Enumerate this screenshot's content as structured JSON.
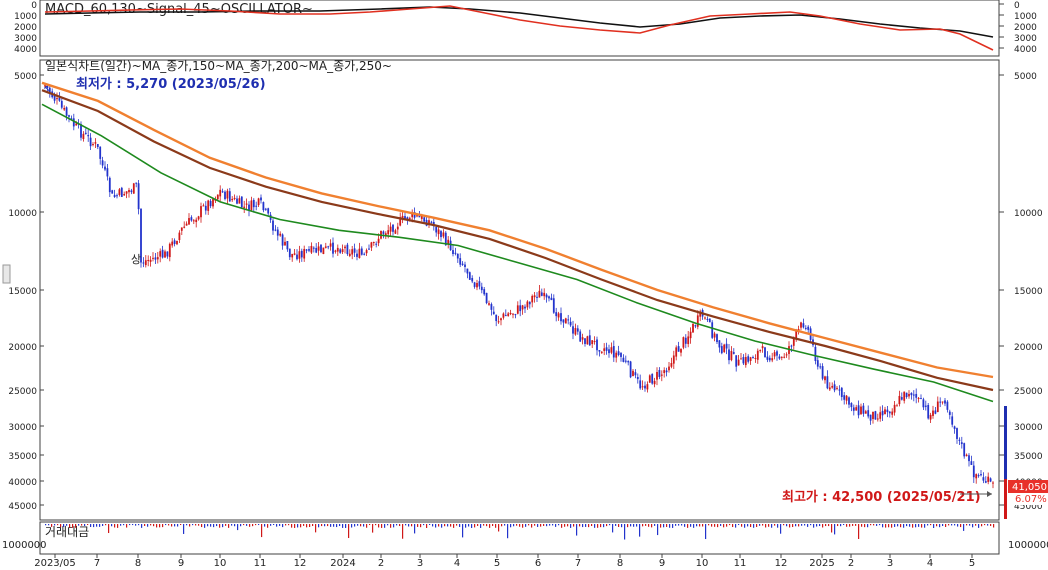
{
  "colors": {
    "up": "#d01818",
    "down": "#2233cc",
    "ma150": "#1e8a1e",
    "ma200": "#8b3a1a",
    "ma250": "#f08030",
    "macd": "#111111",
    "signal": "#e03020",
    "low_text": "#1f2fb0",
    "high_text": "#d01818",
    "price_badge": "#e8302a"
  },
  "macd_panel": {
    "title": "MACD_60,130~Signal_45~OSCILLATOR~",
    "y_ticks": [
      "0",
      "1000",
      "2000",
      "3000",
      "4000"
    ]
  },
  "price_panel": {
    "title": "일본식차트(일간)~MA_종가,150~MA_종가,200~MA_종가,250~",
    "y_ticks_left": [
      "5000",
      "10000",
      "15000",
      "20000",
      "25000",
      "30000",
      "35000",
      "40000",
      "45000"
    ],
    "y_ticks_right": [
      "5000",
      "10000",
      "15000",
      "20000",
      "25000",
      "30000",
      "35000",
      "40000",
      "45000"
    ],
    "low_annotation": "최저가 : 5,270 (2023/05/26)",
    "high_annotation": "최고가 : 42,500 (2025/05/21)",
    "last_price_badge": "41,050",
    "change_badge": "6.07%",
    "split_marker": "상"
  },
  "volume_panel": {
    "title": "거래대금",
    "left_tick": "1000000",
    "right_tick": "1000000"
  },
  "x_axis": {
    "labels": [
      "2023/05",
      "7",
      "8",
      "9",
      "10",
      "11",
      "12",
      "2024",
      "2",
      "3",
      "4",
      "5",
      "6",
      "7",
      "8",
      "9",
      "10",
      "11",
      "12",
      "2025",
      "2",
      "3",
      "4",
      "5"
    ]
  },
  "chart_data": {
    "type": "candlestick",
    "title": "일본식차트(일간)",
    "y_axis": {
      "inverted": true,
      "ticks": [
        5000,
        10000,
        15000,
        20000,
        25000,
        30000,
        35000,
        40000,
        45000
      ],
      "range": [
        5000,
        47000
      ]
    },
    "x_months": [
      "2023/05",
      "7",
      "8",
      "9",
      "10",
      "11",
      "12",
      "2024",
      "2",
      "3",
      "4",
      "5",
      "6",
      "7",
      "8",
      "9",
      "10",
      "11",
      "12",
      "2025",
      "2",
      "3",
      "4",
      "5"
    ],
    "price_path": [
      {
        "x": "2023/05",
        "y": 5270
      },
      {
        "x": "6",
        "y": 6500
      },
      {
        "x": "7",
        "y": 7200
      },
      {
        "x": "7 late",
        "y": 9300
      },
      {
        "x": "8",
        "y": 8800
      },
      {
        "x": "8 split",
        "y": 13000
      },
      {
        "x": "9",
        "y": 12500
      },
      {
        "x": "9 late",
        "y": 11000
      },
      {
        "x": "10",
        "y": 9000
      },
      {
        "x": "11",
        "y": 9800
      },
      {
        "x": "12",
        "y": 9600
      },
      {
        "x": "12 late",
        "y": 12500
      },
      {
        "x": "2024",
        "y": 12000
      },
      {
        "x": "2",
        "y": 12600
      },
      {
        "x": "2 late",
        "y": 11200
      },
      {
        "x": "3",
        "y": 10200
      },
      {
        "x": "3 late",
        "y": 10500
      },
      {
        "x": "4",
        "y": 12500
      },
      {
        "x": "4 late",
        "y": 15000
      },
      {
        "x": "5",
        "y": 17500
      },
      {
        "x": "5 late",
        "y": 16500
      },
      {
        "x": "6",
        "y": 15200
      },
      {
        "x": "6 late",
        "y": 17000
      },
      {
        "x": "7",
        "y": 19000
      },
      {
        "x": "7 late",
        "y": 21000
      },
      {
        "x": "8",
        "y": 24500
      },
      {
        "x": "8 late",
        "y": 23000
      },
      {
        "x": "9",
        "y": 17000
      },
      {
        "x": "10",
        "y": 20000
      },
      {
        "x": "10 late",
        "y": 22000
      },
      {
        "x": "11",
        "y": 20500
      },
      {
        "x": "11 late",
        "y": 21500
      },
      {
        "x": "12",
        "y": 17500
      },
      {
        "x": "12 late",
        "y": 23500
      },
      {
        "x": "2025",
        "y": 27000
      },
      {
        "x": "2",
        "y": 28500
      },
      {
        "x": "2 late",
        "y": 27500
      },
      {
        "x": "3",
        "y": 25000
      },
      {
        "x": "3 late",
        "y": 28500
      },
      {
        "x": "4",
        "y": 26000
      },
      {
        "x": "4 late",
        "y": 33000
      },
      {
        "x": "5",
        "y": 38000
      },
      {
        "x": "5 late",
        "y": 41050
      }
    ],
    "series": [
      {
        "name": "MA_종가,150",
        "values": [
          5800,
          6800,
          8200,
          9500,
          10400,
          11000,
          11400,
          11900,
          13000,
          14200,
          16000,
          17800,
          19500,
          21000,
          22500,
          24000,
          26500
        ]
      },
      {
        "name": "MA_종가,200",
        "values": [
          5400,
          6000,
          7000,
          8000,
          8800,
          9500,
          10100,
          10700,
          11500,
          12700,
          14200,
          15800,
          17200,
          18600,
          20000,
          21600,
          23500,
          25000
        ]
      },
      {
        "name": "MA_종가,250",
        "values": [
          5200,
          5700,
          6600,
          7600,
          8400,
          9100,
          9700,
          10300,
          11000,
          12100,
          13500,
          15000,
          16400,
          17800,
          19200,
          20700,
          22300,
          23400
        ]
      }
    ],
    "annotations": [
      "최저가 : 5,270 (2023/05/26)",
      "최고가 : 42,500 (2025/05/21)"
    ]
  }
}
